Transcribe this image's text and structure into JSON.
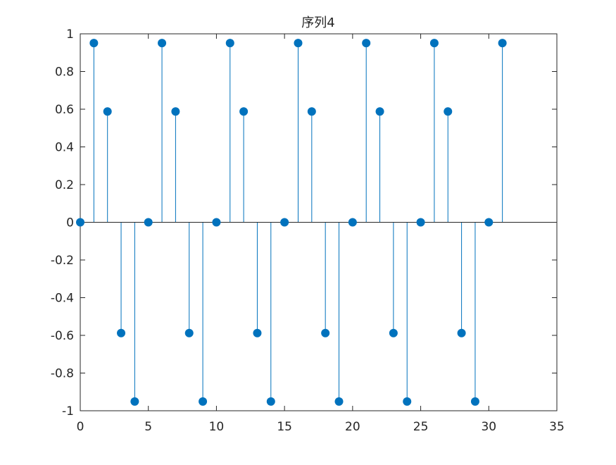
{
  "chart_data": {
    "type": "stem",
    "title": "序列4",
    "xlabel": "",
    "ylabel": "",
    "xlim": [
      0,
      35
    ],
    "ylim": [
      -1,
      1
    ],
    "xticks": [
      0,
      5,
      10,
      15,
      20,
      25,
      30,
      35
    ],
    "yticks": [
      -1,
      -0.8,
      -0.6,
      -0.4,
      -0.2,
      0,
      0.2,
      0.4,
      0.6,
      0.8,
      1
    ],
    "xtick_labels": [
      "0",
      "5",
      "10",
      "15",
      "20",
      "25",
      "30",
      "35"
    ],
    "ytick_labels": [
      "-1",
      "-0.8",
      "-0.6",
      "-0.4",
      "-0.2",
      "0",
      "0.2",
      "0.4",
      "0.6",
      "0.8",
      "1"
    ],
    "grid": false,
    "baseline": 0,
    "marker": "filled-circle",
    "color": "#0072BD",
    "x": [
      0,
      1,
      2,
      3,
      4,
      5,
      6,
      7,
      8,
      9,
      10,
      11,
      12,
      13,
      14,
      15,
      16,
      17,
      18,
      19,
      20,
      21,
      22,
      23,
      24,
      25,
      26,
      27,
      28,
      29,
      30,
      31
    ],
    "y": [
      0,
      0.951,
      0.588,
      -0.588,
      -0.951,
      0,
      0.951,
      0.588,
      -0.588,
      -0.951,
      0,
      0.951,
      0.588,
      -0.588,
      -0.951,
      0,
      0.951,
      0.588,
      -0.588,
      -0.951,
      0,
      0.951,
      0.588,
      -0.588,
      -0.951,
      0,
      0.951,
      0.588,
      -0.588,
      -0.951,
      0,
      0.951
    ]
  }
}
